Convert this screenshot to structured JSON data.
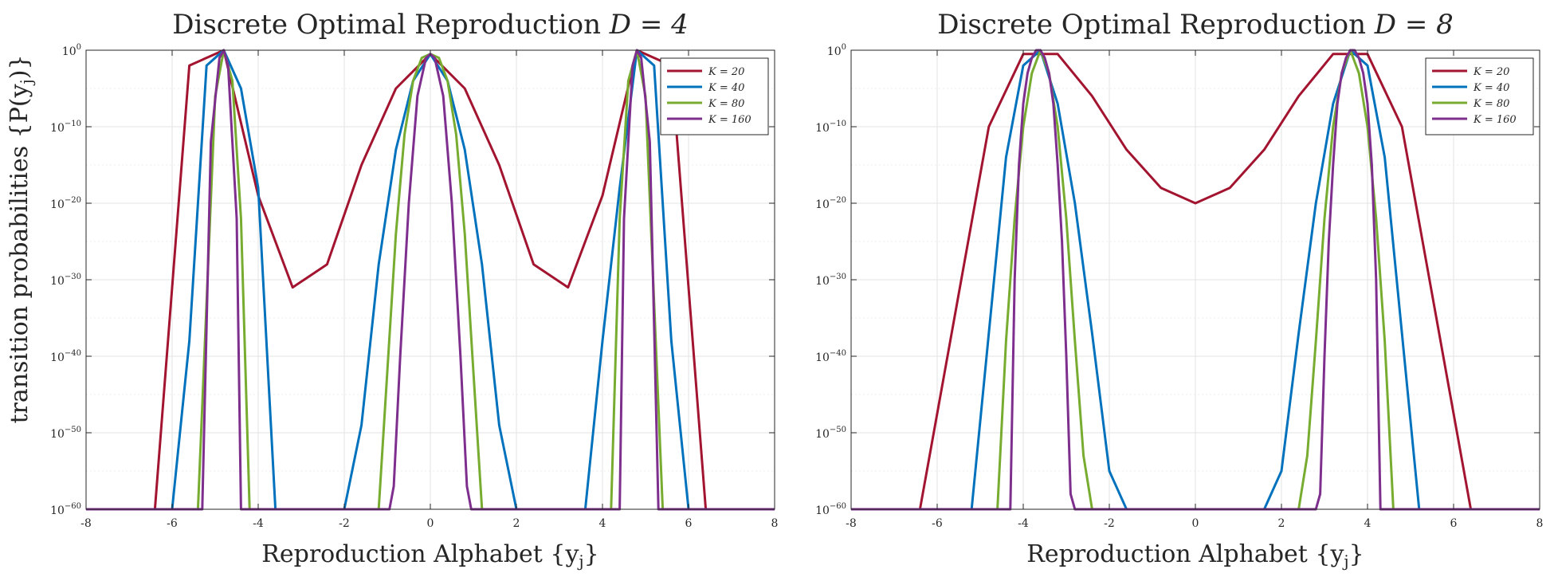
{
  "shared": {
    "ylabel": "transition probabilities {P(y_j)}",
    "ylabel_main": "transition probabilities {P(y",
    "ylabel_sub": "j",
    "ylabel_end": ")}"
  },
  "chart_data": [
    {
      "type": "line",
      "title": "Discrete Optimal Reproduction D = 4",
      "title_main": "Discrete Optimal Reproduction ",
      "title_var": "D = 4",
      "xlabel": "Reproduction Alphabet {y_j}",
      "xlabel_main": "Reproduction Alphabet {y",
      "xlabel_sub": "j",
      "xlabel_end": "}",
      "ylabel": "transition probabilities {P(y_j)}",
      "yscale": "log",
      "xlim": [
        -8,
        8
      ],
      "ylim_exponent": [
        -60,
        0
      ],
      "xticks": [
        "-8",
        "-6",
        "-4",
        "-2",
        "0",
        "2",
        "4",
        "6",
        "8"
      ],
      "yticks": [
        {
          "base": "10",
          "exp": "0",
          "value": 0
        },
        {
          "base": "10",
          "exp": "−10",
          "value": -10
        },
        {
          "base": "10",
          "exp": "−20",
          "value": -20
        },
        {
          "base": "10",
          "exp": "−30",
          "value": -30
        },
        {
          "base": "10",
          "exp": "−40",
          "value": -40
        },
        {
          "base": "10",
          "exp": "−50",
          "value": -50
        },
        {
          "base": "10",
          "exp": "−60",
          "value": -60
        }
      ],
      "grid": true,
      "legend_position": "top-right",
      "series": [
        {
          "name": "K = 20",
          "color": "#A2142F",
          "x": [
            -8,
            -6.4,
            -5.6,
            -4.8,
            -4.0,
            -3.2,
            -2.4,
            -1.6,
            -0.8,
            0,
            0.8,
            1.6,
            2.4,
            3.2,
            4.0,
            4.8,
            5.6,
            6.4,
            8
          ],
          "log10y": [
            -60,
            -60,
            -2,
            0,
            -19,
            -31,
            -28,
            -15,
            -5,
            -0.5,
            -5,
            -15,
            -28,
            -31,
            -19,
            0,
            -2,
            -60,
            -60
          ]
        },
        {
          "name": "K = 40",
          "color": "#0072BD",
          "x": [
            -8,
            -6.0,
            -5.6,
            -5.2,
            -4.8,
            -4.4,
            -4.0,
            -3.6,
            -2.0,
            -1.6,
            -1.2,
            -0.8,
            -0.4,
            0,
            0.4,
            0.8,
            1.2,
            1.6,
            2.0,
            3.6,
            4.0,
            4.4,
            4.8,
            5.2,
            5.6,
            6.0,
            8
          ],
          "log10y": [
            -60,
            -60,
            -38,
            -2,
            0,
            -5,
            -18,
            -60,
            -60,
            -49,
            -28,
            -13,
            -4,
            -0.5,
            -4,
            -13,
            -28,
            -49,
            -60,
            -60,
            -38,
            -18,
            0,
            -2,
            -38,
            -60,
            -60
          ]
        },
        {
          "name": "K = 80",
          "color": "#77AC30",
          "x": [
            -8,
            -5.4,
            -5.2,
            -5.0,
            -4.8,
            -4.6,
            -4.4,
            -4.2,
            -1.2,
            -1.0,
            -0.8,
            -0.6,
            -0.4,
            -0.2,
            0,
            0.2,
            0.4,
            0.6,
            0.8,
            1.0,
            1.2,
            4.2,
            4.4,
            4.6,
            4.8,
            5.0,
            5.2,
            5.4,
            8
          ],
          "log10y": [
            -60,
            -60,
            -33,
            -6,
            0,
            -4,
            -22,
            -60,
            -60,
            -42,
            -24,
            -11,
            -4,
            -1,
            -0.5,
            -1,
            -4,
            -11,
            -24,
            -42,
            -60,
            -60,
            -22,
            -4,
            0,
            -6,
            -33,
            -60,
            -60
          ]
        },
        {
          "name": "K = 160",
          "color": "#7E2F8E",
          "x": [
            -8,
            -5.3,
            -5.1,
            -4.9,
            -4.8,
            -4.7,
            -4.5,
            -4.4,
            -0.95,
            -0.85,
            -0.7,
            -0.5,
            -0.3,
            -0.1,
            0,
            0.1,
            0.3,
            0.5,
            0.7,
            0.85,
            0.95,
            4.4,
            4.5,
            4.7,
            4.8,
            4.9,
            5.1,
            5.3,
            8
          ],
          "log10y": [
            -60,
            -60,
            -12,
            -1,
            0,
            -2,
            -22,
            -60,
            -60,
            -57,
            -40,
            -20,
            -6,
            -1,
            -0.5,
            -1,
            -6,
            -20,
            -40,
            -57,
            -60,
            -60,
            -22,
            -2,
            0,
            -1,
            -12,
            -60,
            -60
          ]
        }
      ]
    },
    {
      "type": "line",
      "title": "Discrete Optimal Reproduction D = 8",
      "title_main": "Discrete Optimal Reproduction ",
      "title_var": "D = 8",
      "xlabel": "Reproduction Alphabet {y_j}",
      "xlabel_main": "Reproduction Alphabet {y",
      "xlabel_sub": "j",
      "xlabel_end": "}",
      "ylabel": "",
      "yscale": "log",
      "xlim": [
        -8,
        8
      ],
      "ylim_exponent": [
        -60,
        0
      ],
      "xticks": [
        "-8",
        "-6",
        "-4",
        "-2",
        "0",
        "2",
        "4",
        "6",
        "8"
      ],
      "yticks": [
        {
          "base": "10",
          "exp": "0",
          "value": 0
        },
        {
          "base": "10",
          "exp": "−10",
          "value": -10
        },
        {
          "base": "10",
          "exp": "−20",
          "value": -20
        },
        {
          "base": "10",
          "exp": "−30",
          "value": -30
        },
        {
          "base": "10",
          "exp": "−40",
          "value": -40
        },
        {
          "base": "10",
          "exp": "−50",
          "value": -50
        },
        {
          "base": "10",
          "exp": "−60",
          "value": -60
        }
      ],
      "grid": true,
      "legend_position": "top-right",
      "series": [
        {
          "name": "K = 20",
          "color": "#A2142F",
          "x": [
            -8,
            -6.4,
            -4.8,
            -4.0,
            -3.2,
            -2.4,
            -1.6,
            -0.8,
            0,
            0.8,
            1.6,
            2.4,
            3.2,
            4.0,
            4.8,
            6.4,
            8
          ],
          "log10y": [
            -60,
            -60,
            -10,
            -0.5,
            -0.5,
            -6,
            -13,
            -18,
            -20,
            -18,
            -13,
            -6,
            -0.5,
            -0.5,
            -10,
            -60,
            -60
          ]
        },
        {
          "name": "K = 40",
          "color": "#0072BD",
          "x": [
            -8,
            -5.2,
            -4.8,
            -4.4,
            -4.0,
            -3.6,
            -3.2,
            -2.8,
            -2.4,
            -2.0,
            -1.6,
            1.6,
            2.0,
            2.4,
            2.8,
            3.2,
            3.6,
            4.0,
            4.4,
            4.8,
            5.2,
            8
          ],
          "log10y": [
            -60,
            -60,
            -37,
            -14,
            -2,
            0,
            -7,
            -20,
            -37,
            -55,
            -60,
            -60,
            -55,
            -37,
            -20,
            -7,
            0,
            -2,
            -14,
            -37,
            -60,
            -60
          ]
        },
        {
          "name": "K = 80",
          "color": "#77AC30",
          "x": [
            -8,
            -4.6,
            -4.4,
            -4.2,
            -4.0,
            -3.8,
            -3.6,
            -3.4,
            -3.2,
            -3.0,
            -2.8,
            -2.6,
            -2.4,
            2.4,
            2.6,
            2.8,
            3.0,
            3.2,
            3.4,
            3.6,
            3.8,
            4.0,
            4.2,
            4.4,
            4.6,
            8
          ],
          "log10y": [
            -60,
            -60,
            -38,
            -22,
            -10,
            -3,
            0,
            -3,
            -10,
            -22,
            -38,
            -53,
            -60,
            -60,
            -53,
            -38,
            -22,
            -10,
            -3,
            0,
            -3,
            -10,
            -22,
            -38,
            -60,
            -60
          ]
        },
        {
          "name": "K = 160",
          "color": "#7E2F8E",
          "x": [
            -8,
            -4.3,
            -4.2,
            -4.1,
            -4.0,
            -3.9,
            -3.8,
            -3.7,
            -3.6,
            -3.5,
            -3.4,
            -3.3,
            -3.2,
            -3.1,
            -3.0,
            -2.9,
            -2.8,
            2.8,
            2.9,
            3.0,
            3.1,
            3.2,
            3.3,
            3.4,
            3.5,
            3.6,
            3.7,
            3.8,
            3.9,
            4.0,
            4.1,
            4.2,
            4.3,
            8
          ],
          "log10y": [
            -60,
            -60,
            -30,
            -15,
            -7,
            -3,
            -1,
            0,
            0,
            -1,
            -3,
            -7,
            -15,
            -25,
            -40,
            -58,
            -60,
            -60,
            -58,
            -40,
            -25,
            -15,
            -7,
            -3,
            -1,
            0,
            0,
            -1,
            -3,
            -7,
            -15,
            -30,
            -60,
            -60
          ]
        }
      ]
    }
  ]
}
